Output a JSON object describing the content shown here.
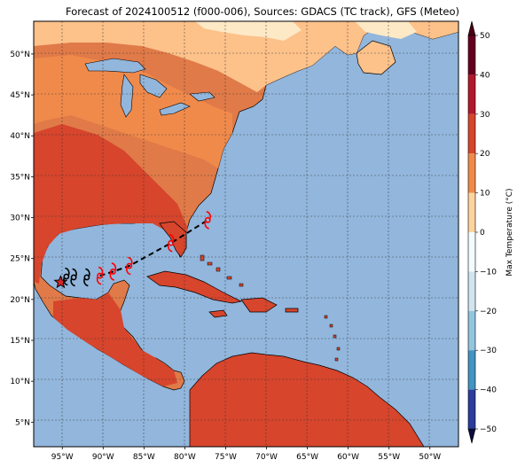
{
  "title": "Forecast of 2024100512 (f000-006), Sources: GDACS (TC track), GFS (Meteo)",
  "map": {
    "lon_ticks": [
      "95°W",
      "90°W",
      "85°W",
      "80°W",
      "75°W",
      "70°W",
      "65°W",
      "60°W",
      "55°W",
      "50°W"
    ],
    "lat_ticks": [
      "50°N",
      "45°N",
      "40°N",
      "35°N",
      "30°N",
      "25°N",
      "20°N",
      "15°N",
      "10°N",
      "5°N"
    ],
    "lon_range": [
      -98.5,
      -46.5
    ],
    "lat_range": [
      2,
      54
    ],
    "gridlines": true
  },
  "colorbar": {
    "label": "Max Temperature (°C)",
    "ticks": [
      "50",
      "40",
      "30",
      "20",
      "10",
      "0",
      "−10",
      "−20",
      "−30",
      "−40",
      "−50"
    ],
    "colors": {
      "lvl_45": "#67001f",
      "lvl_35": "#b2182b",
      "lvl_25": "#d6452c",
      "lvl_15": "#f08a4b",
      "lvl_5": "#fdd49e",
      "lvl_m5": "#f3fbff",
      "lvl_m15": "#d1e5f0",
      "lvl_m25": "#92c5de",
      "lvl_m35": "#4393c3",
      "lvl_m45": "#2c3c9c",
      "ocean": "#92b6dc"
    }
  },
  "track": {
    "points": [
      {
        "lon": -95.2,
        "lat": 22.1,
        "kind": "star"
      },
      {
        "lon": -94.5,
        "lat": 22.8,
        "kind": "black-icon"
      },
      {
        "lon": -93.6,
        "lat": 22.7,
        "kind": "black-icon"
      },
      {
        "lon": -92.0,
        "lat": 22.7,
        "kind": "black-icon"
      },
      {
        "lon": -90.4,
        "lat": 22.9,
        "kind": "red-icon"
      },
      {
        "lon": -88.8,
        "lat": 23.4,
        "kind": "red-icon"
      },
      {
        "lon": -86.8,
        "lat": 24.1,
        "kind": "red-icon"
      },
      {
        "lon": -81.7,
        "lat": 26.9,
        "kind": "red-icon"
      },
      {
        "lon": -77.2,
        "lat": 29.7,
        "kind": "red-icon"
      }
    ]
  }
}
